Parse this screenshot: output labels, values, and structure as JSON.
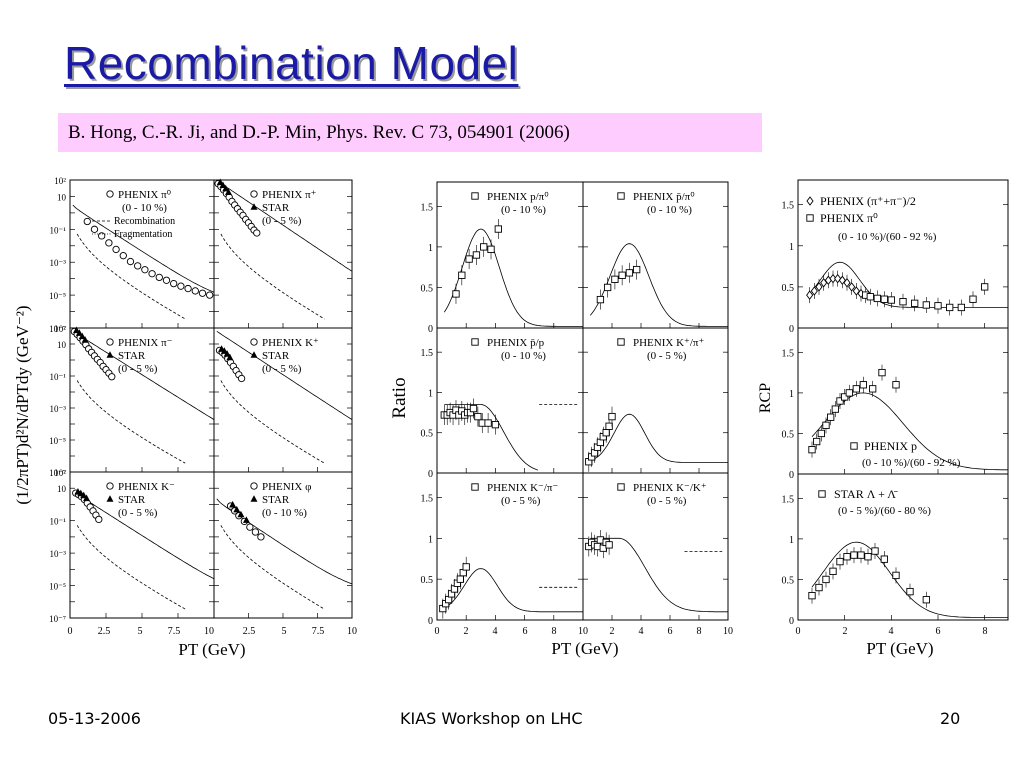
{
  "slide": {
    "title": "Recombination Model",
    "citation": "B. Hong, C.-R. Ji, and D.-P. Min, Phys. Rev. C 73, 054901 (2006)",
    "footer": {
      "date": "05-13-2006",
      "event": "KIAS Workshop on LHC",
      "page": "20"
    }
  },
  "figure1": {
    "ylabel": "(1/2πPT)d²N/dPTdy (GeV⁻²)",
    "xlabel": "PT (GeV)",
    "ytick_labels": [
      "10²",
      "10",
      "10⁻¹",
      "10⁻³",
      "10⁻⁵",
      "10⁻⁷"
    ],
    "xtick_labels": [
      "0",
      "2.5",
      "5",
      "7.5",
      "10",
      "2.5",
      "5",
      "7.5",
      "10"
    ],
    "panels": [
      {
        "legend": [
          "PHENIX π⁰",
          "(0 - 10 %)",
          "Recombination",
          "Fragmentation"
        ]
      },
      {
        "legend": [
          "PHENIX π⁺",
          "STAR",
          "(0 - 5 %)"
        ]
      },
      {
        "legend": [
          "PHENIX π⁻",
          "STAR",
          "(0 - 5 %)"
        ]
      },
      {
        "legend": [
          "PHENIX K⁺",
          "STAR",
          "(0 - 5 %)"
        ]
      },
      {
        "legend": [
          "PHENIX K⁻",
          "STAR",
          "(0 - 5 %)"
        ]
      },
      {
        "legend": [
          "PHENIX φ",
          "STAR",
          "(0 - 10 %)"
        ]
      }
    ]
  },
  "figure2": {
    "ylabel": "Ratio",
    "xlabel": "PT (GeV)",
    "ytick_labels": [
      "0",
      "0.5",
      "1",
      "1.5"
    ],
    "xtick_labels": [
      "0",
      "2",
      "4",
      "6",
      "8",
      "10",
      "2",
      "4",
      "6",
      "8",
      "10"
    ],
    "panels": [
      {
        "legend": [
          "PHENIX p/π⁰",
          "(0 - 10 %)"
        ]
      },
      {
        "legend": [
          "PHENIX p̄/π⁰",
          "(0 - 10 %)"
        ]
      },
      {
        "legend": [
          "PHENIX p̄/p",
          "(0 - 10 %)"
        ]
      },
      {
        "legend": [
          "PHENIX K⁺/π⁺",
          "(0 - 5 %)"
        ]
      },
      {
        "legend": [
          "PHENIX K⁻/π⁻",
          "(0 - 5 %)"
        ]
      },
      {
        "legend": [
          "PHENIX K⁻/K⁺",
          "(0 - 5 %)"
        ]
      }
    ]
  },
  "figure3": {
    "ylabel": "RCP",
    "xlabel": "PT (GeV)",
    "ytick_labels": [
      "0",
      "0.5",
      "1",
      "1.5"
    ],
    "xtick_labels": [
      "0",
      "2",
      "4",
      "6",
      "8"
    ],
    "panels": [
      {
        "legend": [
          "PHENIX (π⁺+π⁻)/2",
          "PHENIX π⁰",
          "(0 - 10 %)/(60 - 92 %)"
        ]
      },
      {
        "legend": [
          "PHENIX p",
          "(0 - 10 %)/(60 - 92 %)"
        ]
      },
      {
        "legend": [
          "STAR Λ + Λ̄",
          "(0 - 5 %)/(60 - 80 %)"
        ]
      }
    ]
  },
  "chart_data": [
    {
      "type": "scatter",
      "name": "spectra",
      "xlim": [
        0,
        10
      ],
      "ylog": true,
      "ylim": [
        1e-07,
        100
      ],
      "panels": [
        {
          "x": [
            1.2,
            1.7,
            2.2,
            2.7,
            3.2,
            3.7,
            4.2,
            4.7,
            5.2,
            5.7,
            6.2,
            6.7,
            7.2,
            7.7,
            8.2,
            8.7,
            9.2,
            9.7
          ],
          "y": [
            0.3,
            0.1,
            0.04,
            0.015,
            0.006,
            0.0025,
            0.0011,
            0.0006,
            0.00035,
            0.0002,
            0.00012,
            8e-05,
            5e-05,
            3.5e-05,
            2.5e-05,
            1.8e-05,
            1.3e-05,
            1e-05
          ]
        },
        {
          "x": [
            0.3,
            0.5,
            0.7,
            0.9,
            1.1,
            1.3,
            1.5,
            1.7,
            1.9,
            2.1,
            2.3,
            2.5,
            2.7,
            2.9,
            3.1
          ],
          "y": [
            60,
            40,
            25,
            15,
            9,
            5,
            3,
            1.8,
            1.1,
            0.7,
            0.4,
            0.25,
            0.15,
            0.09,
            0.06
          ]
        },
        {
          "x": [
            0.3,
            0.5,
            0.7,
            0.9,
            1.1,
            1.3,
            1.5,
            1.7,
            1.9,
            2.1,
            2.3,
            2.5,
            2.7,
            2.9
          ],
          "y": [
            60,
            40,
            25,
            15,
            9,
            5,
            3,
            1.8,
            1.1,
            0.7,
            0.4,
            0.25,
            0.15,
            0.09
          ]
        },
        {
          "x": [
            0.4,
            0.6,
            0.8,
            1.0,
            1.2,
            1.4,
            1.6,
            1.8,
            2.0
          ],
          "y": [
            4,
            3,
            2,
            1.2,
            0.7,
            0.4,
            0.22,
            0.12,
            0.07
          ]
        },
        {
          "x": [
            0.4,
            0.6,
            0.8,
            1.0,
            1.2,
            1.4,
            1.6,
            1.8,
            2.0
          ],
          "y": [
            5,
            4,
            3,
            2,
            1.2,
            0.7,
            0.4,
            0.22,
            0.12
          ]
        },
        {
          "x": [
            1.2,
            1.5,
            1.8,
            2.2,
            2.6,
            3.0,
            3.4
          ],
          "y": [
            0.8,
            0.4,
            0.2,
            0.09,
            0.04,
            0.02,
            0.01
          ]
        }
      ]
    },
    {
      "type": "scatter",
      "name": "ratios",
      "xlim": [
        0,
        10
      ],
      "ylim": [
        0,
        1.8
      ],
      "panels": [
        {
          "x": [
            1.3,
            1.7,
            2.2,
            2.7,
            3.2,
            3.7,
            4.2
          ],
          "y": [
            0.42,
            0.65,
            0.85,
            0.9,
            1.0,
            0.97,
            1.22
          ]
        },
        {
          "x": [
            1.2,
            1.7,
            2.2,
            2.7,
            3.2,
            3.7
          ],
          "y": [
            0.35,
            0.5,
            0.6,
            0.65,
            0.68,
            0.72
          ]
        },
        {
          "x": [
            0.5,
            0.7,
            0.9,
            1.1,
            1.3,
            1.5,
            1.7,
            1.9,
            2.1,
            2.3,
            2.5,
            2.8,
            3.1,
            3.5,
            4.0
          ],
          "y": [
            0.72,
            0.72,
            0.75,
            0.72,
            0.78,
            0.72,
            0.77,
            0.72,
            0.75,
            0.75,
            0.8,
            0.7,
            0.62,
            0.62,
            0.6
          ]
        },
        {
          "x": [
            0.4,
            0.6,
            0.8,
            1.0,
            1.2,
            1.4,
            1.6,
            1.8,
            2.0
          ],
          "y": [
            0.14,
            0.2,
            0.25,
            0.32,
            0.38,
            0.45,
            0.5,
            0.58,
            0.7
          ]
        },
        {
          "x": [
            0.4,
            0.6,
            0.8,
            1.0,
            1.2,
            1.4,
            1.6,
            1.8,
            2.0
          ],
          "y": [
            0.14,
            0.2,
            0.25,
            0.32,
            0.38,
            0.45,
            0.5,
            0.58,
            0.65
          ]
        },
        {
          "x": [
            0.4,
            0.6,
            0.8,
            1.0,
            1.2,
            1.4,
            1.6,
            1.8
          ],
          "y": [
            0.9,
            0.95,
            0.92,
            0.9,
            0.98,
            0.88,
            0.95,
            0.92
          ]
        }
      ]
    },
    {
      "type": "scatter",
      "name": "rcp",
      "xlim": [
        0,
        9
      ],
      "ylim": [
        0,
        1.8
      ],
      "panels": [
        {
          "x": [
            0.5,
            0.7,
            0.9,
            1.1,
            1.3,
            1.5,
            1.7,
            1.9,
            2.1,
            2.3,
            2.5,
            2.7,
            2.9,
            3.1,
            3.4,
            3.7,
            4.0,
            4.5,
            5.0,
            5.5,
            6.0,
            6.5,
            7.0,
            7.5,
            8.0
          ],
          "y": [
            0.4,
            0.45,
            0.5,
            0.55,
            0.58,
            0.6,
            0.6,
            0.58,
            0.55,
            0.5,
            0.45,
            0.42,
            0.4,
            0.38,
            0.36,
            0.35,
            0.34,
            0.32,
            0.3,
            0.28,
            0.27,
            0.25,
            0.25,
            0.35,
            0.5
          ]
        },
        {
          "x": [
            0.6,
            0.8,
            1.0,
            1.2,
            1.4,
            1.6,
            1.8,
            2.0,
            2.2,
            2.5,
            2.8,
            3.2,
            3.6,
            4.2
          ],
          "y": [
            0.3,
            0.4,
            0.5,
            0.6,
            0.7,
            0.8,
            0.9,
            0.95,
            1.0,
            1.05,
            1.1,
            1.05,
            1.25,
            1.1
          ]
        },
        {
          "x": [
            0.6,
            0.9,
            1.2,
            1.5,
            1.8,
            2.1,
            2.4,
            2.7,
            3.0,
            3.3,
            3.7,
            4.2,
            4.8,
            5.5
          ],
          "y": [
            0.3,
            0.4,
            0.5,
            0.6,
            0.72,
            0.78,
            0.8,
            0.8,
            0.78,
            0.85,
            0.75,
            0.55,
            0.35,
            0.25
          ]
        }
      ]
    }
  ]
}
